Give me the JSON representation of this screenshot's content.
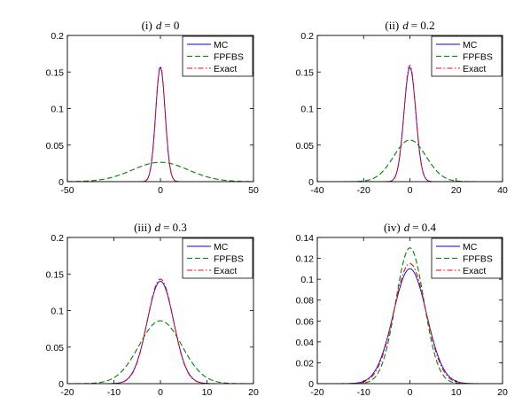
{
  "chart_data": [
    {
      "type": "line",
      "title_prefix": "(i)",
      "title_var": "d",
      "title_value": "= 0",
      "xlim": [
        -50,
        50
      ],
      "ylim": [
        0,
        0.2
      ],
      "xticks": [
        -50,
        0,
        50
      ],
      "yticks": [
        0,
        0.05,
        0.1,
        0.15,
        0.2
      ],
      "legend_position": "top-right",
      "series": [
        {
          "name": "MC",
          "color": "#0000ff",
          "dash": "solid",
          "mean": 0,
          "sd": 2.55,
          "peak": 0.156
        },
        {
          "name": "FPFBS",
          "color": "#008000",
          "dash": "dashed",
          "mean": 0,
          "sd": 15,
          "peak": 0.0265
        },
        {
          "name": "Exact",
          "color": "#ff0000",
          "dash": "dashdot",
          "mean": 0,
          "sd": 2.52,
          "peak": 0.158
        }
      ]
    },
    {
      "type": "line",
      "title_prefix": "(ii)",
      "title_var": "d",
      "title_value": "= 0.2",
      "xlim": [
        -40,
        40
      ],
      "ylim": [
        0,
        0.2
      ],
      "xticks": [
        -40,
        -20,
        0,
        20,
        40
      ],
      "yticks": [
        0,
        0.05,
        0.1,
        0.15,
        0.2
      ],
      "legend_position": "top-right",
      "series": [
        {
          "name": "MC",
          "color": "#0000ff",
          "dash": "solid",
          "mean": 0,
          "sd": 2.55,
          "peak": 0.156
        },
        {
          "name": "FPFBS",
          "color": "#008000",
          "dash": "dashed",
          "mean": 0,
          "sd": 7,
          "peak": 0.057
        },
        {
          "name": "Exact",
          "color": "#ff0000",
          "dash": "dashdot",
          "mean": 0,
          "sd": 2.52,
          "peak": 0.159
        }
      ]
    },
    {
      "type": "line",
      "title_prefix": "(iii)",
      "title_var": "d",
      "title_value": "= 0.3",
      "xlim": [
        -20,
        20
      ],
      "ylim": [
        0,
        0.2
      ],
      "xticks": [
        -20,
        -10,
        0,
        10,
        20
      ],
      "yticks": [
        0,
        0.05,
        0.1,
        0.15,
        0.2
      ],
      "legend_position": "top-right",
      "series": [
        {
          "name": "MC",
          "color": "#0000ff",
          "dash": "solid",
          "mean": 0,
          "sd": 2.85,
          "peak": 0.14
        },
        {
          "name": "FPFBS",
          "color": "#008000",
          "dash": "dashed",
          "mean": 0,
          "sd": 4.6,
          "peak": 0.086
        },
        {
          "name": "Exact",
          "color": "#ff0000",
          "dash": "dashdot",
          "mean": 0,
          "sd": 2.8,
          "peak": 0.143
        }
      ]
    },
    {
      "type": "line",
      "title_prefix": "(iv)",
      "title_var": "d",
      "title_value": "= 0.4",
      "xlim": [
        -20,
        20
      ],
      "ylim": [
        0,
        0.14
      ],
      "xticks": [
        -20,
        -10,
        0,
        10,
        20
      ],
      "yticks": [
        0,
        0.02,
        0.04,
        0.06,
        0.08,
        0.1,
        0.12,
        0.14
      ],
      "legend_position": "top-right",
      "series": [
        {
          "name": "MC",
          "color": "#0000ff",
          "dash": "solid",
          "mean": 0,
          "sd": 3.6,
          "peak": 0.11
        },
        {
          "name": "FPFBS",
          "color": "#008000",
          "dash": "dashed",
          "mean": 0,
          "sd": 3.05,
          "peak": 0.13
        },
        {
          "name": "Exact",
          "color": "#ff0000",
          "dash": "dashdot",
          "mean": 0,
          "sd": 3.45,
          "peak": 0.115
        }
      ]
    }
  ]
}
